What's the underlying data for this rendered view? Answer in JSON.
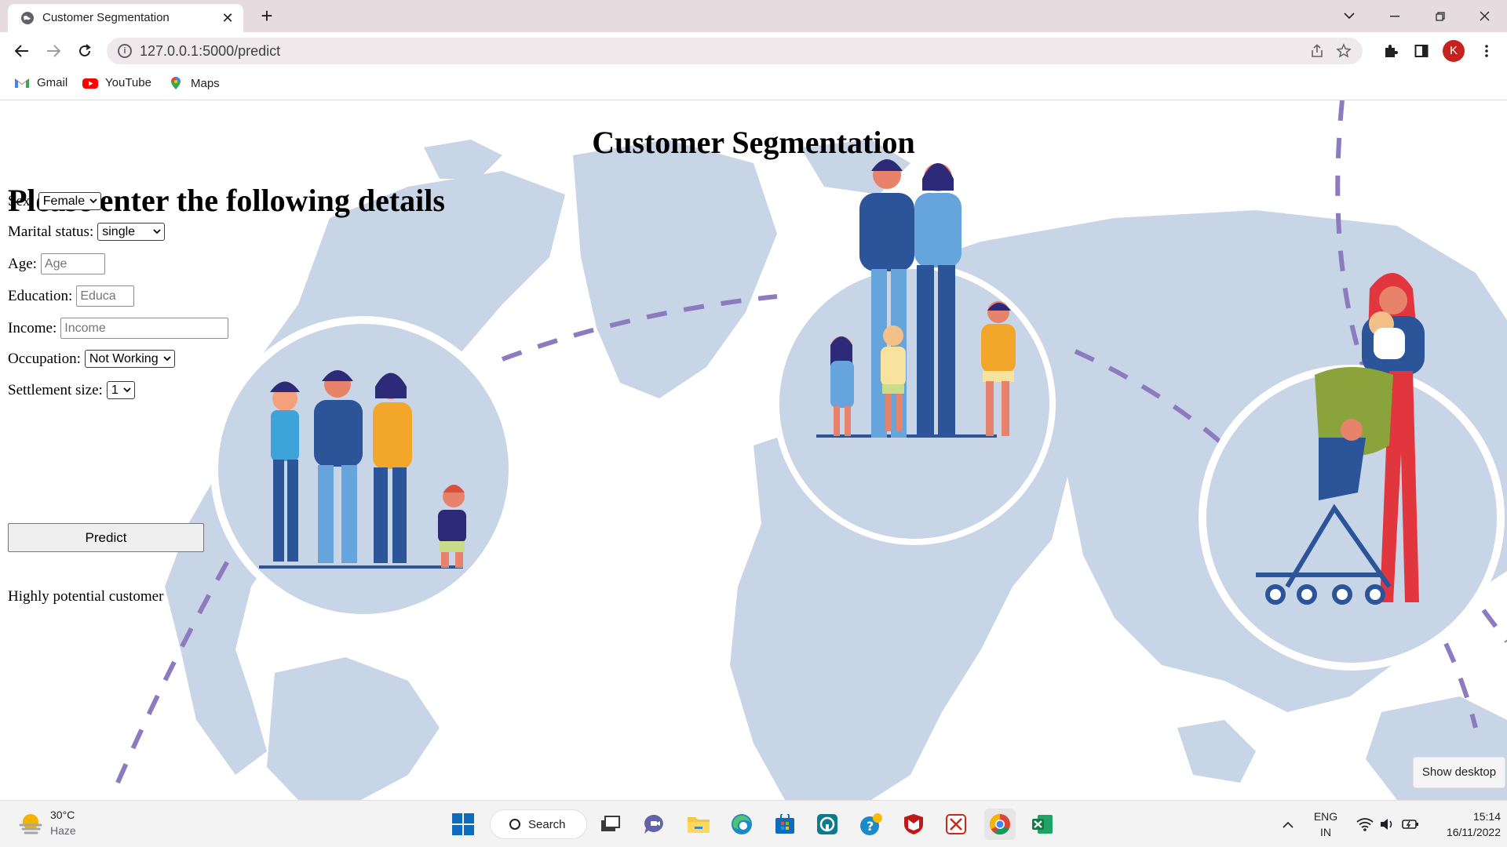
{
  "browser": {
    "tab_title": "Customer Segmentation",
    "tab_close": "✕",
    "new_tab": "+",
    "url": "127.0.0.1:5000/predict",
    "bookmarks": [
      {
        "label": "Gmail",
        "icon": "gmail-icon"
      },
      {
        "label": "YouTube",
        "icon": "youtube-icon"
      },
      {
        "label": "Maps",
        "icon": "maps-icon"
      }
    ],
    "profile_initial": "K"
  },
  "page": {
    "title": "Customer Segmentation",
    "heading": "Please enter the following details",
    "fields": {
      "sex": {
        "label": "Sex:",
        "value": "Female"
      },
      "marital": {
        "label": "Marital status:",
        "value": "single"
      },
      "age": {
        "label": "Age:",
        "placeholder": "Age"
      },
      "education": {
        "label": "Education:",
        "placeholder": "Educa"
      },
      "income": {
        "label": "Income:",
        "placeholder": "Income"
      },
      "occupation": {
        "label": "Occupation:",
        "value": "Not Working"
      },
      "settlement": {
        "label": "Settlement size:",
        "value": "1"
      }
    },
    "predict_label": "Predict",
    "result": "Highly potential customer",
    "show_desktop": "Show desktop",
    "colors": {
      "map": "#c8d5e6",
      "dash": "#8c7cbf"
    }
  },
  "taskbar": {
    "weather_temp": "30°C",
    "weather_condition": "Haze",
    "search_label": "Search",
    "language_top": "ENG",
    "language_bottom": "IN",
    "time": "15:14",
    "date": "16/11/2022"
  }
}
